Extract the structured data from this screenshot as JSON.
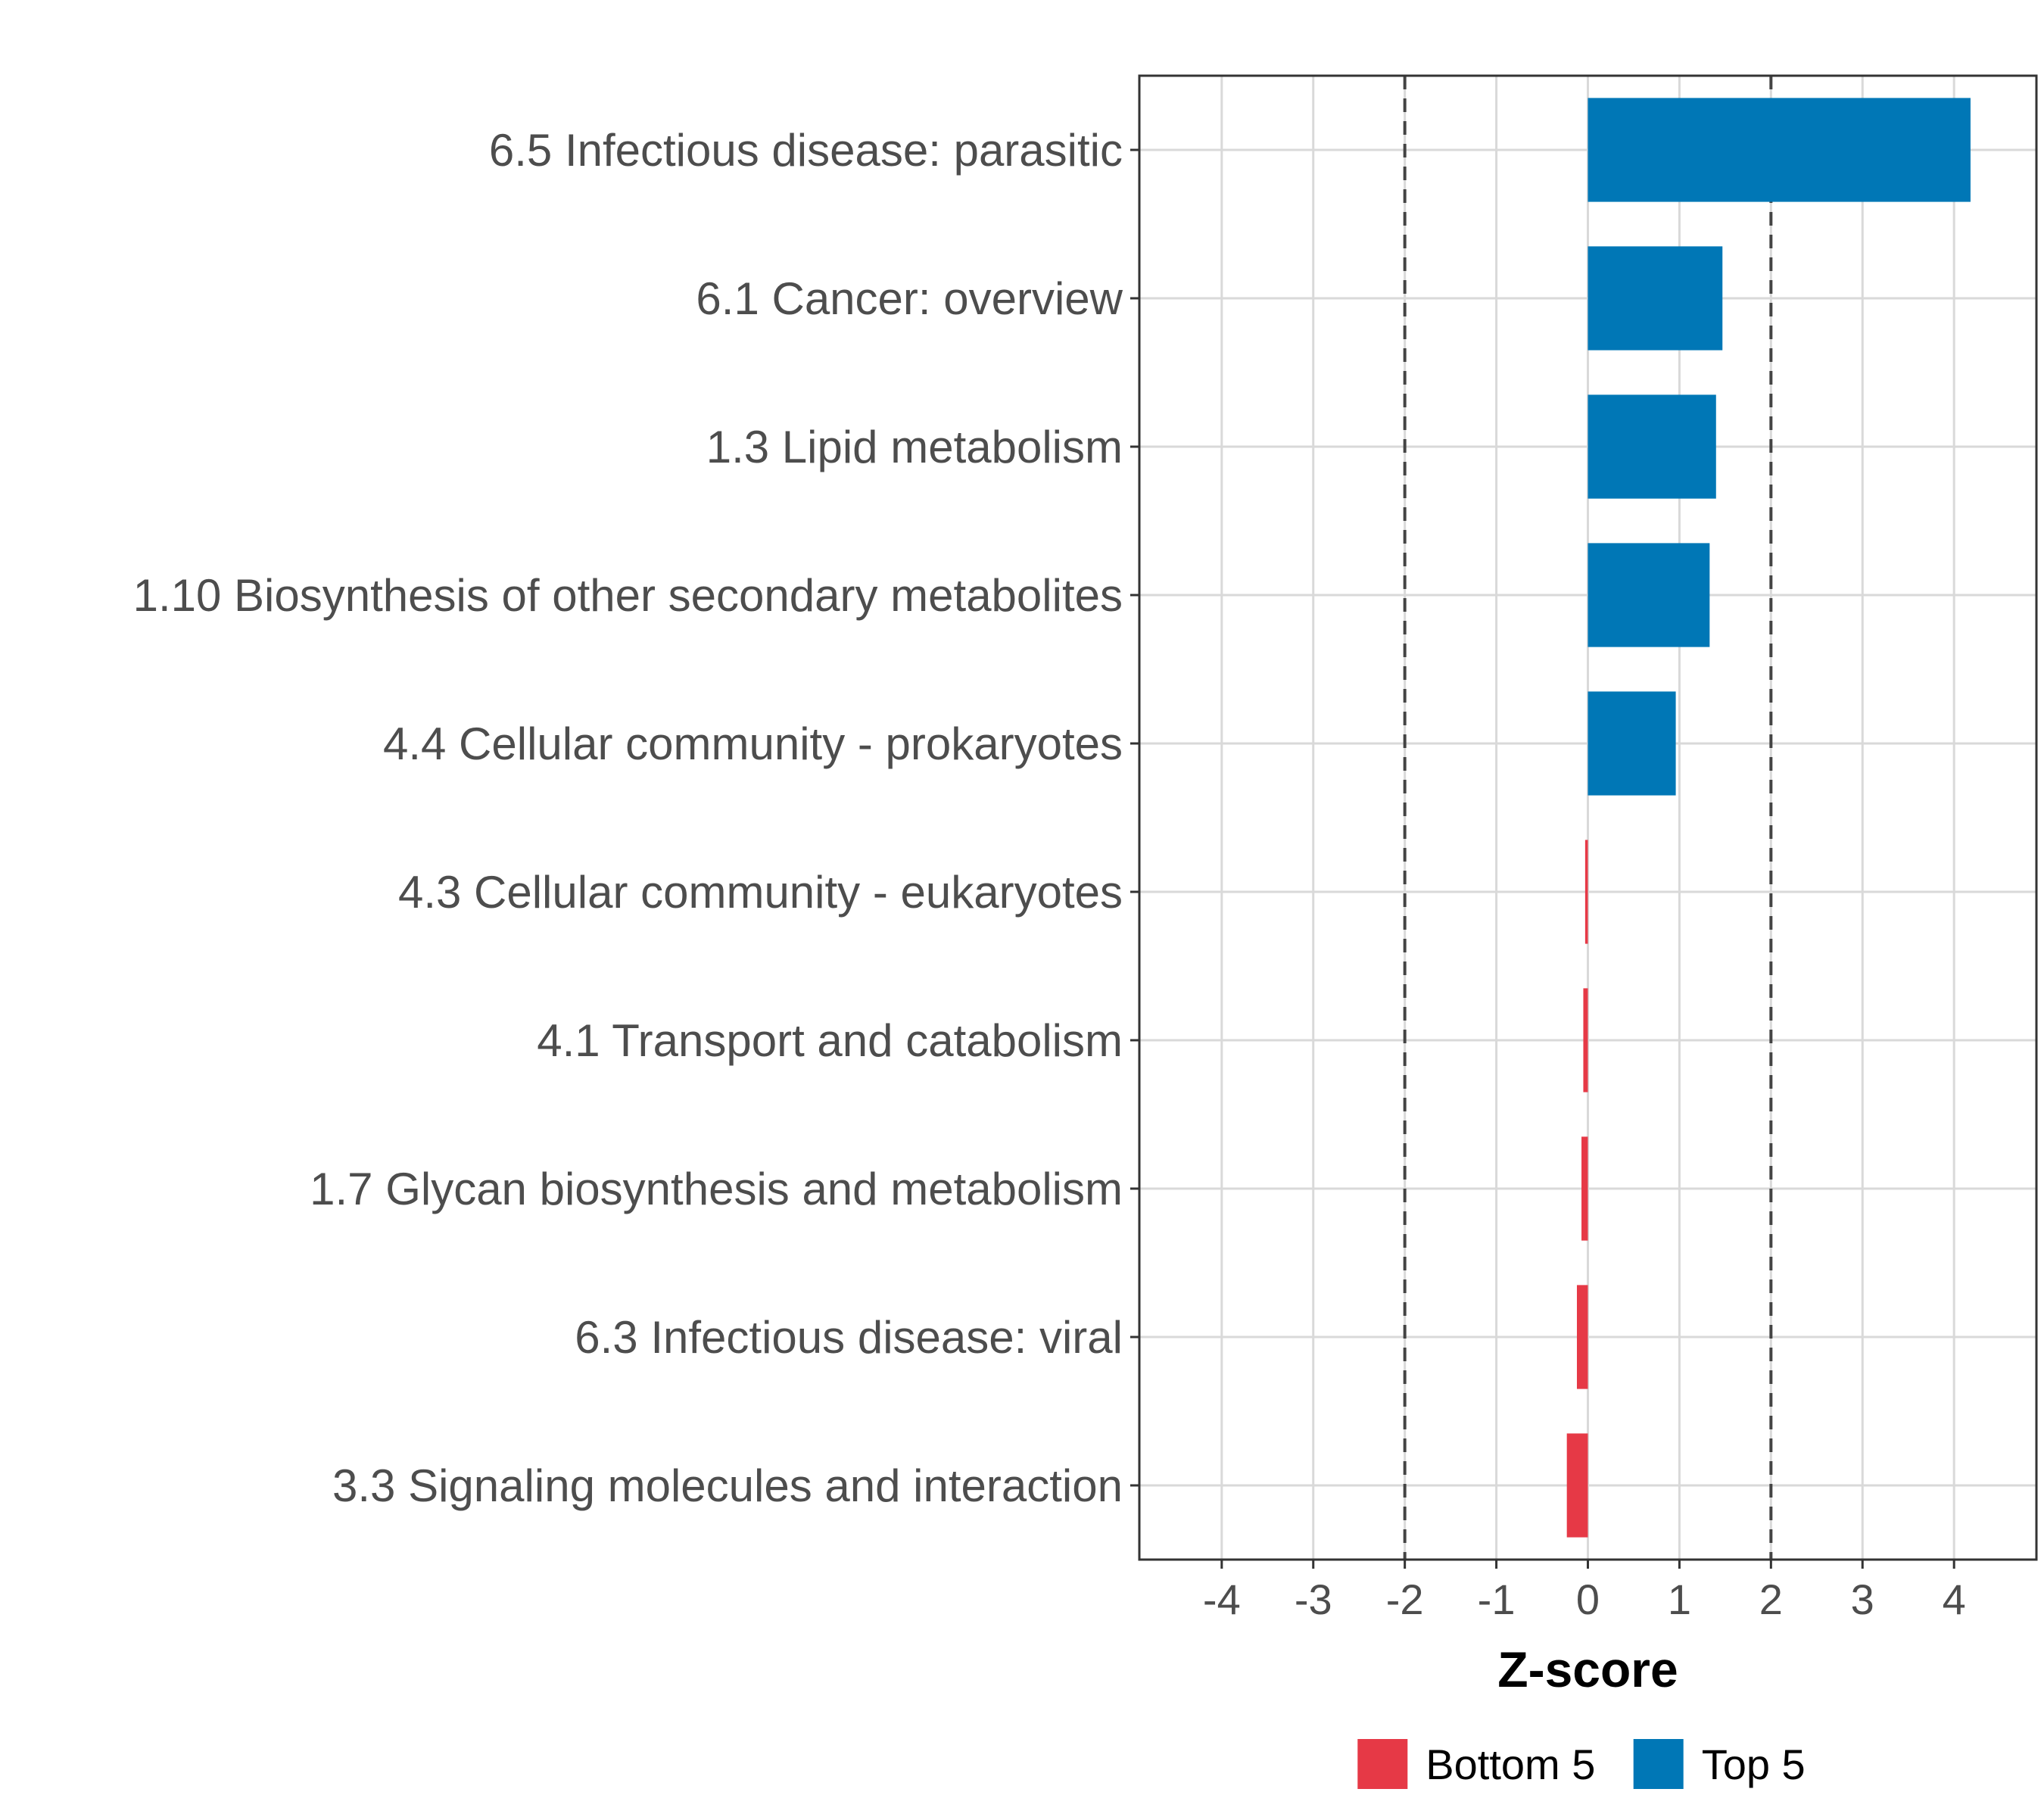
{
  "chart_data": {
    "type": "bar",
    "orientation": "horizontal",
    "title": "",
    "xlabel": "Z-score",
    "ylabel": "",
    "xlim": [
      -4.9,
      4.9
    ],
    "xticks": [
      -4,
      -3,
      -2,
      -1,
      0,
      1,
      2,
      3,
      4
    ],
    "xtick_labels": [
      "-4",
      "-3",
      "-2",
      "-1",
      "0",
      "1",
      "2",
      "3",
      "4"
    ],
    "reference_lines": [
      -2,
      2
    ],
    "grid": true,
    "categories": [
      "6.5 Infectious disease: parasitic",
      "6.1 Cancer: overview",
      "1.3 Lipid metabolism",
      "1.10 Biosynthesis of other secondary metabolites",
      "4.4 Cellular community - prokaryotes",
      "4.3 Cellular community - eukaryotes",
      "4.1 Transport and catabolism",
      "1.7 Glycan biosynthesis and metabolism",
      "6.3 Infectious disease: viral",
      "3.3 Signaling molecules and interaction"
    ],
    "values": [
      4.18,
      1.47,
      1.4,
      1.33,
      0.96,
      -0.03,
      -0.05,
      -0.07,
      -0.12,
      -0.23
    ],
    "groups": [
      "Top 5",
      "Top 5",
      "Top 5",
      "Top 5",
      "Top 5",
      "Bottom 5",
      "Bottom 5",
      "Bottom 5",
      "Bottom 5",
      "Bottom 5"
    ],
    "legend": {
      "position": "bottom",
      "entries": [
        {
          "label": "Bottom 5",
          "color": "#e63946"
        },
        {
          "label": "Top 5",
          "color": "#0077b6"
        }
      ]
    },
    "colors": {
      "Top 5": "#0077b6",
      "Bottom 5": "#e63946"
    }
  }
}
